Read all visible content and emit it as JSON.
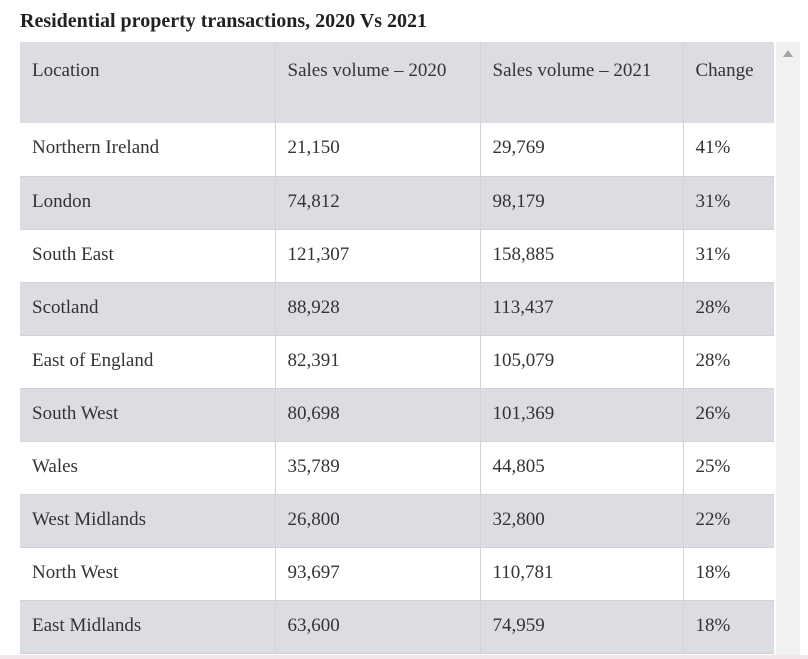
{
  "title": "Residential property transactions, 2020 Vs 2021",
  "table": {
    "headers": [
      "Location",
      "Sales volume – 2020",
      "Sales volume – 2021",
      "Change"
    ],
    "rows": [
      [
        "Northern Ireland",
        "21,150",
        "29,769",
        "41%"
      ],
      [
        "London",
        "74,812",
        "98,179",
        "31%"
      ],
      [
        "South East",
        "121,307",
        "158,885",
        "31%"
      ],
      [
        "Scotland",
        "88,928",
        "113,437",
        "28%"
      ],
      [
        "East of England",
        "82,391",
        "105,079",
        "28%"
      ],
      [
        "South West",
        "80,698",
        "101,369",
        "26%"
      ],
      [
        "Wales",
        "35,789",
        "44,805",
        "25%"
      ],
      [
        "West Midlands",
        "26,800",
        "32,800",
        "22%"
      ],
      [
        "North West",
        "93,697",
        "110,781",
        "18%"
      ],
      [
        "East Midlands",
        "63,600",
        "74,959",
        "18%"
      ]
    ]
  }
}
